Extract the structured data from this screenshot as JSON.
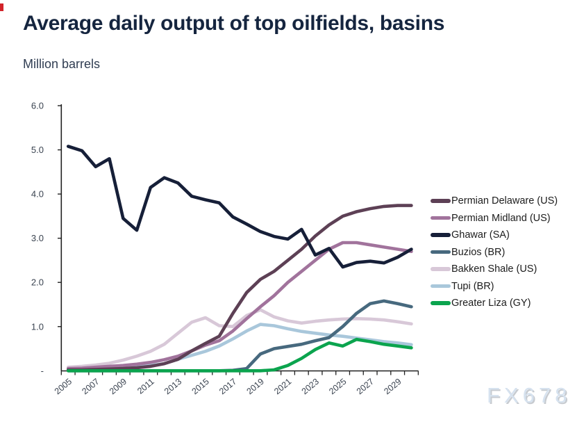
{
  "title": "Average daily output of top oilfields, basins",
  "subtitle": "Million barrels",
  "watermark": "FX678",
  "colors": {
    "title_text": "#15253f",
    "axis_text": "#3a4350",
    "axis_line": "#202020",
    "brand_mark_red": "#d2232a",
    "watermark_blue": "#d6e2ef"
  },
  "chart_data": {
    "type": "line",
    "title": "Average daily output of top oilfields, basins",
    "ylabel": "Million barrels",
    "xlabel": "",
    "grid": false,
    "legend_position": "right",
    "ylim": [
      0,
      6
    ],
    "y_ticks": [
      {
        "v": 6,
        "label": "6.0"
      },
      {
        "v": 5,
        "label": "5.0"
      },
      {
        "v": 4,
        "label": "4.0"
      },
      {
        "v": 3,
        "label": "3.0"
      },
      {
        "v": 2,
        "label": "2.0"
      },
      {
        "v": 1,
        "label": "1.0"
      },
      {
        "v": 0,
        "label": "-"
      }
    ],
    "x": [
      2005,
      2006,
      2007,
      2008,
      2009,
      2010,
      2011,
      2012,
      2013,
      2014,
      2015,
      2016,
      2017,
      2018,
      2019,
      2020,
      2021,
      2022,
      2023,
      2024,
      2025,
      2026,
      2027,
      2028,
      2029,
      2030
    ],
    "x_tick_labels": [
      "2005",
      "2007",
      "2009",
      "2011",
      "2013",
      "2015",
      "2017",
      "2019",
      "2021",
      "2023",
      "2025",
      "2027",
      "2029"
    ],
    "series": [
      {
        "name": "Permian Delaware (US)",
        "color": "#5d4055",
        "values": [
          0.02,
          0.02,
          0.03,
          0.04,
          0.05,
          0.07,
          0.1,
          0.16,
          0.26,
          0.45,
          0.62,
          0.78,
          1.3,
          1.77,
          2.07,
          2.25,
          2.5,
          2.75,
          3.05,
          3.3,
          3.5,
          3.6,
          3.67,
          3.72,
          3.74,
          3.74
        ]
      },
      {
        "name": "Permian Midland (US)",
        "color": "#a1739c",
        "values": [
          0.05,
          0.06,
          0.08,
          0.1,
          0.12,
          0.15,
          0.19,
          0.25,
          0.33,
          0.45,
          0.58,
          0.68,
          0.9,
          1.18,
          1.45,
          1.7,
          2.0,
          2.25,
          2.5,
          2.75,
          2.9,
          2.9,
          2.85,
          2.8,
          2.75,
          2.7
        ]
      },
      {
        "name": "Ghawar (SA)",
        "color": "#161f38",
        "values": [
          5.08,
          4.98,
          4.62,
          4.8,
          3.45,
          3.18,
          4.15,
          4.37,
          4.25,
          3.95,
          3.87,
          3.8,
          3.48,
          3.32,
          3.15,
          3.04,
          2.98,
          3.2,
          2.62,
          2.77,
          2.35,
          2.45,
          2.48,
          2.44,
          2.57,
          2.75
        ]
      },
      {
        "name": "Buzios (BR)",
        "color": "#47697e",
        "values": [
          0,
          0,
          0,
          0,
          0,
          0,
          0,
          0,
          0,
          0,
          0,
          0,
          0.01,
          0.05,
          0.38,
          0.5,
          0.55,
          0.6,
          0.68,
          0.75,
          1.0,
          1.3,
          1.52,
          1.58,
          1.52,
          1.45
        ]
      },
      {
        "name": "Bakken Shale (US)",
        "color": "#d8c8d8",
        "values": [
          0.08,
          0.1,
          0.13,
          0.17,
          0.24,
          0.33,
          0.44,
          0.6,
          0.85,
          1.1,
          1.2,
          1.02,
          1.0,
          1.25,
          1.38,
          1.22,
          1.13,
          1.08,
          1.12,
          1.15,
          1.17,
          1.18,
          1.17,
          1.15,
          1.11,
          1.06
        ]
      },
      {
        "name": "Tupi (BR)",
        "color": "#a9c7db",
        "values": [
          0.01,
          0.01,
          0.02,
          0.03,
          0.05,
          0.08,
          0.12,
          0.16,
          0.26,
          0.35,
          0.44,
          0.56,
          0.72,
          0.9,
          1.05,
          1.02,
          0.95,
          0.89,
          0.85,
          0.81,
          0.78,
          0.74,
          0.7,
          0.66,
          0.63,
          0.59
        ]
      },
      {
        "name": "Greater Liza (GY)",
        "color": "#0ba44e",
        "values": [
          0,
          0,
          0,
          0,
          0,
          0,
          0,
          0,
          0,
          0,
          0,
          0,
          0,
          0,
          0,
          0.02,
          0.12,
          0.28,
          0.48,
          0.63,
          0.56,
          0.71,
          0.66,
          0.6,
          0.56,
          0.52
        ]
      }
    ],
    "draw_order": [
      4,
      5,
      1,
      0,
      3,
      6,
      2
    ]
  }
}
